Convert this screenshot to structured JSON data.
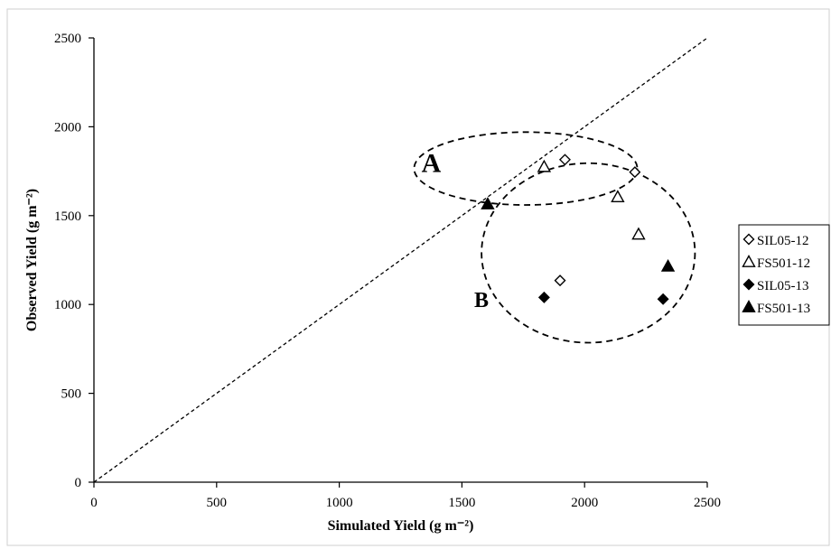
{
  "chart_data": {
    "type": "scatter",
    "xlabel": "Simulated Yield (g m⁻²)",
    "ylabel": "Observed Yield (g m⁻²)",
    "xlim": [
      0,
      2500
    ],
    "ylim": [
      0,
      2500
    ],
    "x_ticks": [
      "0",
      "500",
      "1000",
      "1500",
      "2000",
      "2500"
    ],
    "y_ticks": [
      "0",
      "500",
      "1000",
      "1500",
      "2000",
      "2500"
    ],
    "grid": false,
    "legend_position": "right",
    "reference_line": {
      "style": "dashed",
      "from": [
        0,
        0
      ],
      "to": [
        2500,
        2500
      ]
    },
    "series": [
      {
        "name": "SIL05-12",
        "marker": "diamond-open",
        "points": [
          [
            1920,
            1815
          ],
          [
            2205,
            1745
          ],
          [
            1900,
            1135
          ]
        ]
      },
      {
        "name": "FS501-12",
        "marker": "triangle-open",
        "points": [
          [
            1835,
            1775
          ],
          [
            2135,
            1605
          ],
          [
            2220,
            1395
          ]
        ]
      },
      {
        "name": "SIL05-13",
        "marker": "diamond-filled",
        "points": [
          [
            1835,
            1040
          ],
          [
            2320,
            1030
          ]
        ]
      },
      {
        "name": "FS501-13",
        "marker": "triangle-filled",
        "points": [
          [
            1605,
            1565
          ],
          [
            2340,
            1215
          ]
        ]
      }
    ],
    "annotations": [
      {
        "label": "A",
        "x": 1335,
        "y": 1745
      },
      {
        "label": "B",
        "x": 1550,
        "y": 985
      }
    ],
    "groupings": [
      {
        "cx": 1760,
        "cy": 1765,
        "rx": 455,
        "ry": 205
      },
      {
        "cx": 2015,
        "cy": 1290,
        "rx": 435,
        "ry": 505
      }
    ]
  }
}
